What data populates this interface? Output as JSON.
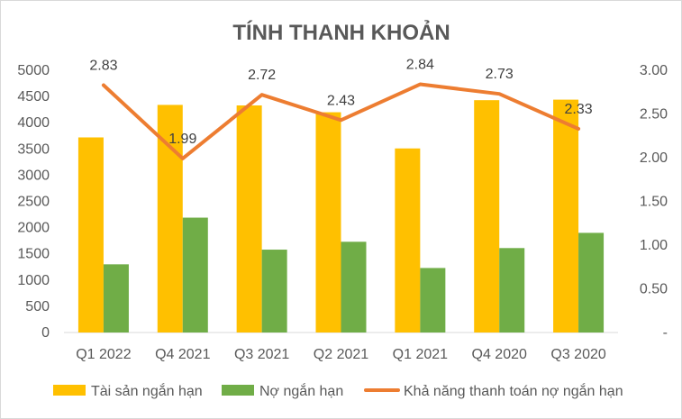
{
  "chart_data": {
    "type": "bar",
    "title": "TÍNH THANH KHOẢN",
    "categories": [
      "Q1 2022",
      "Q4 2021",
      "Q3 2021",
      "Q2 2021",
      "Q1 2021",
      "Q4 2020",
      "Q3 2020"
    ],
    "series": [
      {
        "name": "Tài sản ngắn hạn",
        "type": "bar",
        "axis": "left",
        "color": "#ffc000",
        "values": [
          3720,
          4340,
          4330,
          4200,
          3510,
          4430,
          4440
        ]
      },
      {
        "name": "Nợ ngắn hạn",
        "type": "bar",
        "axis": "left",
        "color": "#70ad47",
        "values": [
          1300,
          2190,
          1580,
          1730,
          1230,
          1610,
          1900
        ]
      },
      {
        "name": "Khả năng thanh toán nợ ngắn hạn",
        "type": "line",
        "axis": "right",
        "color": "#ed7d31",
        "values": [
          2.83,
          1.99,
          2.72,
          2.43,
          2.84,
          2.73,
          2.33
        ],
        "labels": [
          "2.83",
          "1.99",
          "2.72",
          "2.43",
          "2.84",
          "2.73",
          "2.33"
        ]
      }
    ],
    "y_left": {
      "min": 0,
      "max": 5000,
      "ticks": [
        "0",
        "500",
        "1000",
        "1500",
        "2000",
        "2500",
        "3000",
        "3500",
        "4000",
        "4500",
        "5000"
      ]
    },
    "y_right": {
      "min": 0,
      "max": 3,
      "ticks": [
        "-",
        "0.50",
        "1.00",
        "1.50",
        "2.00",
        "2.50",
        "3.00"
      ]
    },
    "grid": false,
    "legend_position": "bottom"
  }
}
